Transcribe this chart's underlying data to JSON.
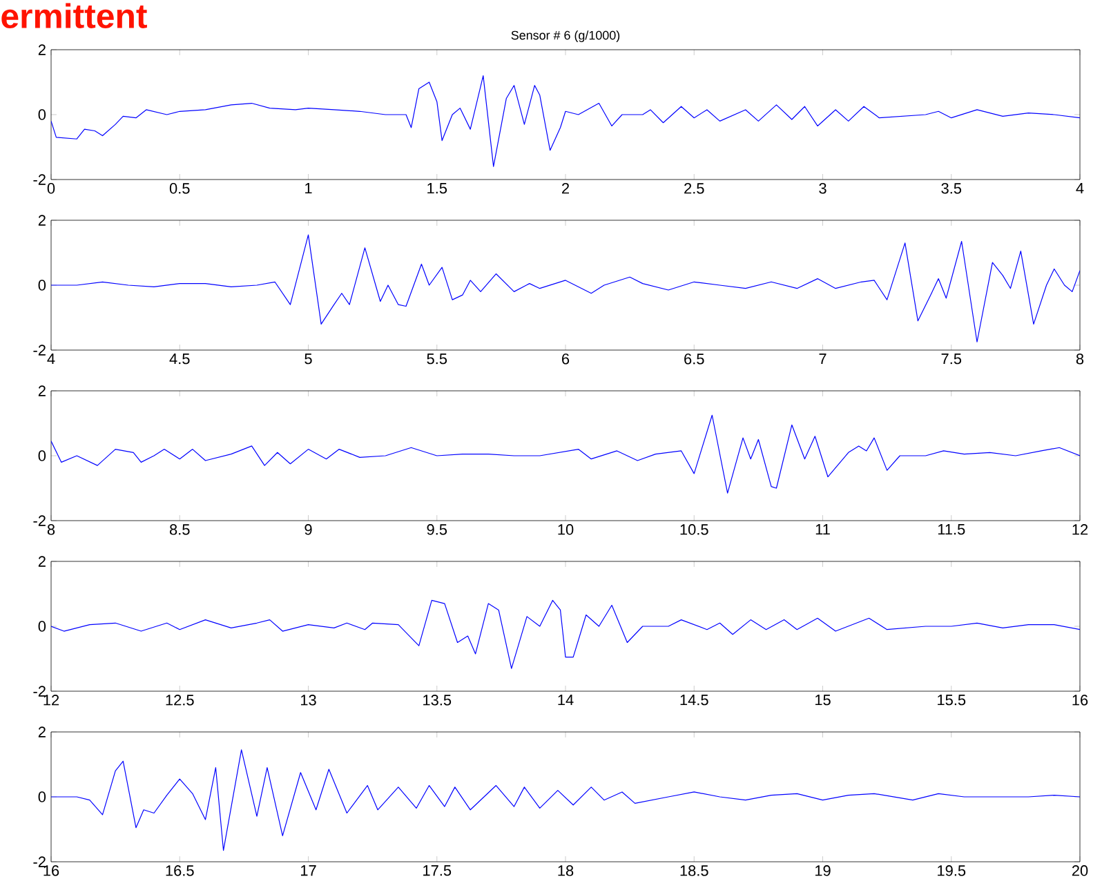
{
  "chart_data": [
    {
      "type": "line",
      "title": "Sensor # 6 (g/1000)",
      "annotations": [
        "ermittent"
      ],
      "xlim": [
        0,
        4
      ],
      "ylim": [
        -2,
        2
      ],
      "xticks": [
        0,
        0.5,
        1,
        1.5,
        2,
        2.5,
        3,
        3.5,
        4
      ],
      "yticks": [
        -2,
        0,
        2
      ],
      "series": [
        {
          "color": "#0000ff",
          "x": [
            0,
            0.02,
            0.1,
            0.13,
            0.17,
            0.2,
            0.25,
            0.28,
            0.33,
            0.37,
            0.45,
            0.5,
            0.6,
            0.7,
            0.78,
            0.85,
            0.95,
            1.0,
            1.1,
            1.2,
            1.3,
            1.38,
            1.4,
            1.43,
            1.47,
            1.5,
            1.52,
            1.56,
            1.59,
            1.63,
            1.68,
            1.72,
            1.77,
            1.8,
            1.84,
            1.88,
            1.9,
            1.94,
            1.98,
            2.0,
            2.05,
            2.13,
            2.18,
            2.22,
            2.3,
            2.33,
            2.38,
            2.45,
            2.5,
            2.55,
            2.6,
            2.7,
            2.75,
            2.82,
            2.88,
            2.93,
            2.98,
            3.05,
            3.1,
            3.16,
            3.22,
            3.4,
            3.45,
            3.5,
            3.6,
            3.7,
            3.8,
            3.9,
            4.0
          ],
          "values": [
            -0.2,
            -0.7,
            -0.75,
            -0.45,
            -0.5,
            -0.65,
            -0.3,
            -0.05,
            -0.1,
            0.15,
            0.0,
            0.1,
            0.15,
            0.3,
            0.35,
            0.2,
            0.15,
            0.2,
            0.15,
            0.1,
            0.0,
            0.0,
            -0.4,
            0.8,
            1.0,
            0.4,
            -0.8,
            0.0,
            0.2,
            -0.45,
            1.2,
            -1.6,
            0.5,
            0.9,
            -0.3,
            0.9,
            0.6,
            -1.1,
            -0.4,
            0.1,
            0.0,
            0.35,
            -0.35,
            0.0,
            0.0,
            0.15,
            -0.25,
            0.25,
            -0.1,
            0.15,
            -0.2,
            0.15,
            -0.2,
            0.3,
            -0.15,
            0.25,
            -0.35,
            0.15,
            -0.2,
            0.25,
            -0.1,
            0.0,
            0.1,
            -0.1,
            0.15,
            -0.05,
            0.05,
            0.0,
            -0.1
          ]
        }
      ]
    },
    {
      "type": "line",
      "xlim": [
        4,
        8
      ],
      "ylim": [
        -2,
        2
      ],
      "xticks": [
        4,
        4.5,
        5,
        5.5,
        6,
        6.5,
        7,
        7.5,
        8
      ],
      "yticks": [
        -2,
        0,
        2
      ],
      "series": [
        {
          "color": "#0000ff",
          "x": [
            4,
            4.1,
            4.2,
            4.3,
            4.4,
            4.5,
            4.6,
            4.7,
            4.8,
            4.87,
            4.93,
            5.0,
            5.05,
            5.1,
            5.13,
            5.16,
            5.22,
            5.28,
            5.31,
            5.35,
            5.38,
            5.44,
            5.47,
            5.52,
            5.56,
            5.6,
            5.63,
            5.67,
            5.73,
            5.8,
            5.86,
            5.9,
            6.0,
            6.1,
            6.15,
            6.25,
            6.3,
            6.4,
            6.5,
            6.6,
            6.7,
            6.8,
            6.9,
            6.98,
            7.05,
            7.15,
            7.2,
            7.25,
            7.32,
            7.37,
            7.42,
            7.45,
            7.48,
            7.54,
            7.6,
            7.66,
            7.7,
            7.73,
            7.77,
            7.82,
            7.87,
            7.9,
            7.94,
            7.97,
            8.0
          ],
          "values": [
            0.0,
            0.0,
            0.1,
            0.0,
            -0.05,
            0.05,
            0.05,
            -0.05,
            0.0,
            0.1,
            -0.6,
            1.55,
            -1.2,
            -0.6,
            -0.25,
            -0.6,
            1.15,
            -0.5,
            0.0,
            -0.6,
            -0.65,
            0.65,
            0.0,
            0.55,
            -0.45,
            -0.3,
            0.15,
            -0.2,
            0.35,
            -0.2,
            0.05,
            -0.1,
            0.15,
            -0.25,
            0.0,
            0.25,
            0.05,
            -0.15,
            0.1,
            0.0,
            -0.1,
            0.1,
            -0.1,
            0.2,
            -0.1,
            0.1,
            0.15,
            -0.45,
            1.3,
            -1.1,
            -0.3,
            0.2,
            -0.4,
            1.35,
            -1.75,
            0.7,
            0.3,
            -0.1,
            1.05,
            -1.2,
            0.0,
            0.5,
            0.0,
            -0.2,
            0.45
          ]
        }
      ]
    },
    {
      "type": "line",
      "xlim": [
        8,
        12
      ],
      "ylim": [
        -2,
        2
      ],
      "xticks": [
        8,
        8.5,
        9,
        9.5,
        10,
        10.5,
        11,
        11.5,
        12
      ],
      "yticks": [
        -2,
        0,
        2
      ],
      "series": [
        {
          "color": "#0000ff",
          "x": [
            8,
            8.04,
            8.1,
            8.18,
            8.25,
            8.32,
            8.35,
            8.4,
            8.44,
            8.5,
            8.55,
            8.6,
            8.7,
            8.78,
            8.83,
            8.88,
            8.93,
            9.0,
            9.07,
            9.12,
            9.2,
            9.3,
            9.4,
            9.5,
            9.6,
            9.7,
            9.8,
            9.9,
            10.05,
            10.1,
            10.2,
            10.28,
            10.35,
            10.45,
            10.5,
            10.57,
            10.63,
            10.69,
            10.72,
            10.75,
            10.8,
            10.82,
            10.88,
            10.93,
            10.97,
            11.02,
            11.1,
            11.14,
            11.17,
            11.2,
            11.25,
            11.3,
            11.4,
            11.47,
            11.55,
            11.65,
            11.75,
            11.85,
            11.92,
            12.0
          ],
          "values": [
            0.45,
            -0.2,
            0.0,
            -0.3,
            0.2,
            0.1,
            -0.2,
            0.0,
            0.2,
            -0.1,
            0.2,
            -0.15,
            0.05,
            0.3,
            -0.3,
            0.1,
            -0.25,
            0.2,
            -0.1,
            0.2,
            -0.05,
            0.0,
            0.25,
            0.0,
            0.05,
            0.05,
            0.0,
            0.0,
            0.2,
            -0.1,
            0.15,
            -0.15,
            0.05,
            0.15,
            -0.55,
            1.25,
            -1.15,
            0.55,
            -0.1,
            0.5,
            -0.95,
            -1.0,
            0.95,
            -0.1,
            0.6,
            -0.65,
            0.1,
            0.3,
            0.15,
            0.55,
            -0.45,
            0.0,
            0.0,
            0.15,
            0.05,
            0.1,
            0.0,
            0.15,
            0.25,
            0.0
          ]
        }
      ]
    },
    {
      "type": "line",
      "xlim": [
        12,
        16
      ],
      "ylim": [
        -2,
        2
      ],
      "xticks": [
        12,
        12.5,
        13,
        13.5,
        14,
        14.5,
        15,
        15.5,
        16
      ],
      "yticks": [
        -2,
        0,
        2
      ],
      "series": [
        {
          "color": "#0000ff",
          "x": [
            12,
            12.05,
            12.15,
            12.25,
            12.35,
            12.45,
            12.5,
            12.6,
            12.7,
            12.8,
            12.85,
            12.9,
            13.0,
            13.1,
            13.15,
            13.22,
            13.25,
            13.35,
            13.43,
            13.48,
            13.53,
            13.58,
            13.62,
            13.65,
            13.7,
            13.74,
            13.79,
            13.85,
            13.9,
            13.95,
            13.98,
            14.0,
            14.03,
            14.08,
            14.13,
            14.18,
            14.24,
            14.3,
            14.4,
            14.45,
            14.55,
            14.6,
            14.65,
            14.72,
            14.78,
            14.85,
            14.9,
            14.98,
            15.05,
            15.18,
            15.25,
            15.4,
            15.5,
            15.6,
            15.7,
            15.8,
            15.9,
            16.0
          ],
          "values": [
            0.0,
            -0.15,
            0.05,
            0.1,
            -0.15,
            0.1,
            -0.1,
            0.2,
            -0.05,
            0.1,
            0.2,
            -0.15,
            0.05,
            -0.05,
            0.1,
            -0.1,
            0.1,
            0.05,
            -0.6,
            0.8,
            0.7,
            -0.5,
            -0.3,
            -0.85,
            0.7,
            0.5,
            -1.3,
            0.3,
            0.0,
            0.8,
            0.5,
            -0.95,
            -0.95,
            0.35,
            0.0,
            0.65,
            -0.5,
            0.0,
            0.0,
            0.2,
            -0.1,
            0.1,
            -0.25,
            0.2,
            -0.1,
            0.2,
            -0.1,
            0.25,
            -0.15,
            0.25,
            -0.1,
            0.0,
            0.0,
            0.1,
            -0.05,
            0.05,
            0.05,
            -0.1
          ]
        }
      ]
    },
    {
      "type": "line",
      "xlim": [
        16,
        20
      ],
      "ylim": [
        -2,
        2
      ],
      "xticks": [
        16,
        16.5,
        17,
        17.5,
        18,
        18.5,
        19,
        19.5,
        20
      ],
      "yticks": [
        -2,
        0,
        2
      ],
      "series": [
        {
          "color": "#0000ff",
          "x": [
            16,
            16.1,
            16.15,
            16.2,
            16.25,
            16.28,
            16.33,
            16.36,
            16.4,
            16.45,
            16.5,
            16.55,
            16.6,
            16.64,
            16.67,
            16.74,
            16.8,
            16.84,
            16.9,
            16.97,
            17.03,
            17.08,
            17.15,
            17.23,
            17.27,
            17.35,
            17.42,
            17.47,
            17.53,
            17.57,
            17.63,
            17.73,
            17.8,
            17.84,
            17.9,
            17.97,
            18.03,
            18.1,
            18.15,
            18.22,
            18.27,
            18.4,
            18.5,
            18.6,
            18.7,
            18.8,
            18.9,
            19.0,
            19.1,
            19.2,
            19.35,
            19.45,
            19.55,
            19.7,
            19.8,
            19.9,
            20.0
          ],
          "values": [
            0.0,
            0.0,
            -0.1,
            -0.55,
            0.8,
            1.1,
            -0.95,
            -0.4,
            -0.5,
            0.05,
            0.55,
            0.1,
            -0.7,
            0.9,
            -1.65,
            1.45,
            -0.6,
            0.9,
            -1.2,
            0.75,
            -0.4,
            0.85,
            -0.5,
            0.35,
            -0.4,
            0.3,
            -0.35,
            0.35,
            -0.3,
            0.3,
            -0.4,
            0.35,
            -0.3,
            0.3,
            -0.35,
            0.2,
            -0.25,
            0.3,
            -0.1,
            0.15,
            -0.2,
            0.0,
            0.15,
            0.0,
            -0.1,
            0.05,
            0.1,
            -0.1,
            0.05,
            0.1,
            -0.1,
            0.1,
            0.0,
            0.0,
            0.0,
            0.05,
            0.0
          ]
        }
      ]
    }
  ]
}
